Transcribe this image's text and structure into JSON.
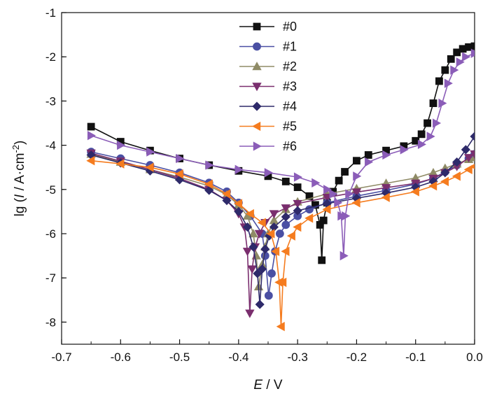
{
  "chart_data": {
    "type": "line",
    "title": "",
    "xlabel": {
      "italic": "E",
      "rest": " / V"
    },
    "ylabel": {
      "pre": "lg (",
      "italic": "I",
      "mid": " / A·cm",
      "sup": "-2",
      "post": ")"
    },
    "xlim": [
      -0.7,
      0.0
    ],
    "ylim": [
      -8.5,
      -1.0
    ],
    "x_ticks": [
      -0.7,
      -0.6,
      -0.5,
      -0.4,
      -0.3,
      -0.2,
      -0.1,
      0.0
    ],
    "x_tick_labels": [
      "-0.7",
      "-0.6",
      "-0.5",
      "-0.4",
      "-0.3",
      "-0.2",
      "-0.1",
      "0.0"
    ],
    "y_ticks": [
      -8,
      -7,
      -6,
      -5,
      -4,
      -3,
      -2,
      -1
    ],
    "y_tick_labels": [
      "-8",
      "-7",
      "-6",
      "-5",
      "-4",
      "-3",
      "-2",
      "-1"
    ],
    "grid": false,
    "legend_position": "top-center",
    "series": [
      {
        "name": "#0",
        "color": "#111111",
        "marker": "square",
        "points": [
          [
            -0.65,
            -3.58
          ],
          [
            -0.6,
            -3.92
          ],
          [
            -0.55,
            -4.12
          ],
          [
            -0.5,
            -4.3
          ],
          [
            -0.45,
            -4.45
          ],
          [
            -0.4,
            -4.58
          ],
          [
            -0.35,
            -4.7
          ],
          [
            -0.32,
            -4.82
          ],
          [
            -0.3,
            -4.95
          ],
          [
            -0.28,
            -5.15
          ],
          [
            -0.27,
            -5.35
          ],
          [
            -0.262,
            -5.8
          ],
          [
            -0.259,
            -6.6
          ],
          [
            -0.256,
            -5.7
          ],
          [
            -0.25,
            -5.3
          ],
          [
            -0.24,
            -5.05
          ],
          [
            -0.23,
            -4.8
          ],
          [
            -0.22,
            -4.6
          ],
          [
            -0.2,
            -4.35
          ],
          [
            -0.18,
            -4.22
          ],
          [
            -0.15,
            -4.12
          ],
          [
            -0.12,
            -4.02
          ],
          [
            -0.1,
            -3.9
          ],
          [
            -0.09,
            -3.75
          ],
          [
            -0.08,
            -3.5
          ],
          [
            -0.07,
            -3.05
          ],
          [
            -0.06,
            -2.55
          ],
          [
            -0.05,
            -2.3
          ],
          [
            -0.04,
            -2.05
          ],
          [
            -0.03,
            -1.9
          ],
          [
            -0.02,
            -1.82
          ],
          [
            -0.01,
            -1.78
          ],
          [
            0.0,
            -1.76
          ]
        ]
      },
      {
        "name": "#1",
        "color": "#4a4fa3",
        "marker": "circle",
        "points": [
          [
            -0.65,
            -4.15
          ],
          [
            -0.6,
            -4.3
          ],
          [
            -0.55,
            -4.45
          ],
          [
            -0.5,
            -4.62
          ],
          [
            -0.45,
            -4.85
          ],
          [
            -0.42,
            -5.05
          ],
          [
            -0.4,
            -5.3
          ],
          [
            -0.38,
            -5.6
          ],
          [
            -0.36,
            -6.0
          ],
          [
            -0.355,
            -6.5
          ],
          [
            -0.349,
            -7.4
          ],
          [
            -0.344,
            -6.9
          ],
          [
            -0.338,
            -6.4
          ],
          [
            -0.33,
            -6.0
          ],
          [
            -0.32,
            -5.8
          ],
          [
            -0.3,
            -5.6
          ],
          [
            -0.28,
            -5.45
          ],
          [
            -0.25,
            -5.3
          ],
          [
            -0.2,
            -5.15
          ],
          [
            -0.15,
            -5.02
          ],
          [
            -0.1,
            -4.88
          ],
          [
            -0.07,
            -4.75
          ],
          [
            -0.05,
            -4.6
          ],
          [
            -0.03,
            -4.45
          ],
          [
            -0.01,
            -4.3
          ],
          [
            0.0,
            -4.2
          ]
        ]
      },
      {
        "name": "#2",
        "color": "#8f8b66",
        "marker": "triangle-up",
        "points": [
          [
            -0.65,
            -4.2
          ],
          [
            -0.6,
            -4.38
          ],
          [
            -0.55,
            -4.55
          ],
          [
            -0.5,
            -4.72
          ],
          [
            -0.45,
            -4.92
          ],
          [
            -0.42,
            -5.12
          ],
          [
            -0.4,
            -5.35
          ],
          [
            -0.385,
            -5.6
          ],
          [
            -0.375,
            -6.0
          ],
          [
            -0.37,
            -6.5
          ],
          [
            -0.366,
            -7.2
          ],
          [
            -0.36,
            -6.7
          ],
          [
            -0.355,
            -6.3
          ],
          [
            -0.35,
            -6.0
          ],
          [
            -0.34,
            -5.7
          ],
          [
            -0.32,
            -5.45
          ],
          [
            -0.3,
            -5.28
          ],
          [
            -0.25,
            -5.1
          ],
          [
            -0.2,
            -4.98
          ],
          [
            -0.15,
            -4.86
          ],
          [
            -0.1,
            -4.74
          ],
          [
            -0.07,
            -4.62
          ],
          [
            -0.05,
            -4.52
          ],
          [
            -0.03,
            -4.42
          ],
          [
            -0.01,
            -4.32
          ],
          [
            0.0,
            -4.28
          ]
        ]
      },
      {
        "name": "#3",
        "color": "#7a2e6e",
        "marker": "triangle-down",
        "points": [
          [
            -0.65,
            -4.18
          ],
          [
            -0.6,
            -4.36
          ],
          [
            -0.55,
            -4.55
          ],
          [
            -0.5,
            -4.75
          ],
          [
            -0.45,
            -5.0
          ],
          [
            -0.42,
            -5.25
          ],
          [
            -0.4,
            -5.55
          ],
          [
            -0.39,
            -5.85
          ],
          [
            -0.385,
            -6.4
          ],
          [
            -0.381,
            -7.8
          ],
          [
            -0.377,
            -6.8
          ],
          [
            -0.372,
            -6.3
          ],
          [
            -0.365,
            -6.0
          ],
          [
            -0.355,
            -5.75
          ],
          [
            -0.34,
            -5.55
          ],
          [
            -0.32,
            -5.42
          ],
          [
            -0.3,
            -5.32
          ],
          [
            -0.25,
            -5.18
          ],
          [
            -0.2,
            -5.06
          ],
          [
            -0.15,
            -4.96
          ],
          [
            -0.1,
            -4.86
          ],
          [
            -0.07,
            -4.75
          ],
          [
            -0.05,
            -4.62
          ],
          [
            -0.03,
            -4.48
          ],
          [
            -0.01,
            -4.28
          ],
          [
            0.0,
            -4.2
          ]
        ]
      },
      {
        "name": "#4",
        "color": "#2e2a6a",
        "marker": "diamond",
        "points": [
          [
            -0.65,
            -4.22
          ],
          [
            -0.6,
            -4.4
          ],
          [
            -0.55,
            -4.58
          ],
          [
            -0.5,
            -4.78
          ],
          [
            -0.45,
            -5.02
          ],
          [
            -0.42,
            -5.25
          ],
          [
            -0.4,
            -5.5
          ],
          [
            -0.385,
            -5.85
          ],
          [
            -0.375,
            -6.3
          ],
          [
            -0.368,
            -6.9
          ],
          [
            -0.364,
            -7.6
          ],
          [
            -0.36,
            -6.8
          ],
          [
            -0.355,
            -6.35
          ],
          [
            -0.348,
            -6.05
          ],
          [
            -0.34,
            -5.85
          ],
          [
            -0.32,
            -5.62
          ],
          [
            -0.3,
            -5.48
          ],
          [
            -0.25,
            -5.32
          ],
          [
            -0.2,
            -5.2
          ],
          [
            -0.15,
            -5.08
          ],
          [
            -0.1,
            -4.95
          ],
          [
            -0.07,
            -4.82
          ],
          [
            -0.05,
            -4.62
          ],
          [
            -0.03,
            -4.38
          ],
          [
            -0.015,
            -4.1
          ],
          [
            0.0,
            -3.8
          ]
        ]
      },
      {
        "name": "#5",
        "color": "#f57c1f",
        "marker": "triangle-left",
        "points": [
          [
            -0.65,
            -4.35
          ],
          [
            -0.6,
            -4.42
          ],
          [
            -0.55,
            -4.5
          ],
          [
            -0.5,
            -4.65
          ],
          [
            -0.45,
            -4.88
          ],
          [
            -0.42,
            -5.1
          ],
          [
            -0.4,
            -5.32
          ],
          [
            -0.38,
            -5.55
          ],
          [
            -0.36,
            -5.75
          ],
          [
            -0.345,
            -6.0
          ],
          [
            -0.337,
            -6.4
          ],
          [
            -0.331,
            -7.1
          ],
          [
            -0.328,
            -8.1
          ],
          [
            -0.325,
            -7.1
          ],
          [
            -0.32,
            -6.4
          ],
          [
            -0.31,
            -6.05
          ],
          [
            -0.3,
            -5.85
          ],
          [
            -0.28,
            -5.65
          ],
          [
            -0.25,
            -5.45
          ],
          [
            -0.2,
            -5.3
          ],
          [
            -0.15,
            -5.18
          ],
          [
            -0.1,
            -5.05
          ],
          [
            -0.07,
            -4.92
          ],
          [
            -0.05,
            -4.82
          ],
          [
            -0.03,
            -4.7
          ],
          [
            -0.01,
            -4.55
          ],
          [
            0.0,
            -4.48
          ]
        ]
      },
      {
        "name": "#6",
        "color": "#8b5db8",
        "marker": "triangle-right",
        "points": [
          [
            -0.65,
            -3.78
          ],
          [
            -0.6,
            -4.0
          ],
          [
            -0.55,
            -4.15
          ],
          [
            -0.5,
            -4.3
          ],
          [
            -0.45,
            -4.45
          ],
          [
            -0.4,
            -4.55
          ],
          [
            -0.35,
            -4.62
          ],
          [
            -0.3,
            -4.72
          ],
          [
            -0.27,
            -4.85
          ],
          [
            -0.25,
            -5.0
          ],
          [
            -0.24,
            -5.1
          ],
          [
            -0.232,
            -5.3
          ],
          [
            -0.226,
            -5.6
          ],
          [
            -0.222,
            -6.5
          ],
          [
            -0.219,
            -5.6
          ],
          [
            -0.213,
            -5.1
          ],
          [
            -0.2,
            -4.7
          ],
          [
            -0.18,
            -4.38
          ],
          [
            -0.15,
            -4.22
          ],
          [
            -0.12,
            -4.1
          ],
          [
            -0.09,
            -3.98
          ],
          [
            -0.075,
            -3.8
          ],
          [
            -0.065,
            -3.5
          ],
          [
            -0.055,
            -3.05
          ],
          [
            -0.045,
            -2.6
          ],
          [
            -0.035,
            -2.3
          ],
          [
            -0.025,
            -2.12
          ],
          [
            -0.015,
            -2.0
          ],
          [
            0.0,
            -1.92
          ]
        ]
      }
    ]
  }
}
